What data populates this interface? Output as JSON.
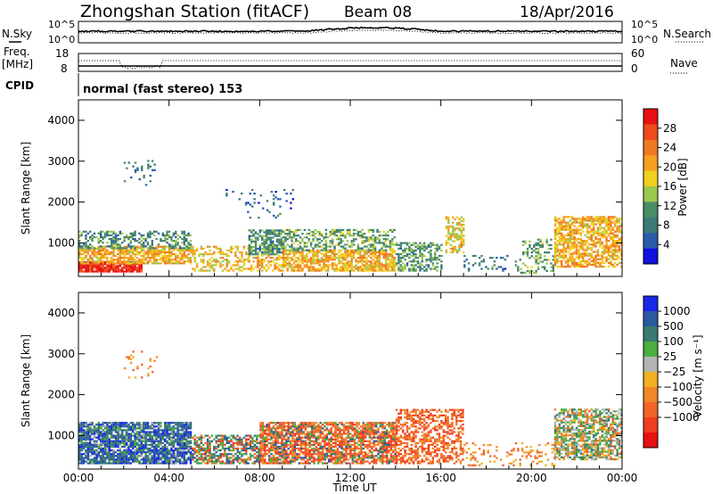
{
  "header": {
    "station": "Zhongshan Station (fitACF)",
    "beam": "Beam 08",
    "date": "18/Apr/2016"
  },
  "noise_panel": {
    "left_label": "N.Sky",
    "left_ticks": [
      "10^5",
      "10^0"
    ],
    "right_ticks": [
      "10^5",
      "10^0"
    ],
    "right_label": "N.Search"
  },
  "freq_panel": {
    "left_label_1": "Freq.",
    "left_label_2": "[MHz]",
    "left_ticks": [
      "18",
      "8"
    ],
    "right_ticks": [
      "60",
      "0"
    ],
    "right_label": "Nave"
  },
  "cpid": {
    "label": "CPID",
    "value": "normal (fast stereo) 153"
  },
  "power_panel": {
    "ylabel": "Slant Range [km]",
    "colorbar_label": "Power [dB]"
  },
  "velocity_panel": {
    "ylabel": "Slant Range [km]",
    "colorbar_label": "Velocity  [m s⁻¹]"
  },
  "x_axis": {
    "label": "Time UT",
    "ticks": [
      "00:00",
      "04:00",
      "08:00",
      "12:00",
      "16:00",
      "20:00",
      "00:00"
    ]
  },
  "chart_data": [
    {
      "type": "heatmap",
      "title": "",
      "xlabel": "Time UT",
      "ylabel": "Slant Range [km]",
      "xlim": [
        0,
        24
      ],
      "ylim": [
        180,
        4500
      ],
      "y_ticks": [
        1000,
        2000,
        3000,
        4000
      ],
      "colorbar": {
        "label": "Power [dB]",
        "range": [
          0,
          32
        ],
        "ticks": [
          4,
          8,
          12,
          16,
          20,
          24,
          28
        ],
        "colors": [
          "#1010e0",
          "#2a5caa",
          "#3c7a78",
          "#4a8c64",
          "#9cc850",
          "#f0d020",
          "#f5a020",
          "#f07820",
          "#ee4a1a",
          "#e81010"
        ]
      },
      "scatter_regions": [
        {
          "t0": 0.0,
          "t1": 2.8,
          "r0": 280,
          "r1": 520,
          "level": 30,
          "density": 0.9
        },
        {
          "t0": 0.0,
          "t1": 5.0,
          "r0": 480,
          "r1": 900,
          "level": 20,
          "density": 0.75
        },
        {
          "t0": 0.0,
          "t1": 5.0,
          "r0": 850,
          "r1": 1300,
          "level": 10,
          "density": 0.45
        },
        {
          "t0": 5.0,
          "t1": 7.5,
          "r0": 300,
          "r1": 900,
          "level": 18,
          "density": 0.45
        },
        {
          "t0": 7.5,
          "t1": 9.0,
          "r0": 700,
          "r1": 1300,
          "level": 10,
          "density": 0.7
        },
        {
          "t0": 7.5,
          "t1": 9.0,
          "r0": 300,
          "r1": 700,
          "level": 20,
          "density": 0.45
        },
        {
          "t0": 9.0,
          "t1": 14.0,
          "r0": 300,
          "r1": 800,
          "level": 20,
          "density": 0.75
        },
        {
          "t0": 9.0,
          "t1": 14.0,
          "r0": 800,
          "r1": 1300,
          "level": 12,
          "density": 0.5
        },
        {
          "t0": 14.0,
          "t1": 16.0,
          "r0": 300,
          "r1": 1000,
          "level": 11,
          "density": 0.5
        },
        {
          "t0": 16.2,
          "t1": 17.0,
          "r0": 750,
          "r1": 1650,
          "level": 18,
          "density": 0.55
        },
        {
          "t0": 17.0,
          "t1": 19.5,
          "r0": 300,
          "r1": 700,
          "level": 8,
          "density": 0.18
        },
        {
          "t0": 19.5,
          "t1": 21.0,
          "r0": 250,
          "r1": 1100,
          "level": 12,
          "density": 0.3
        },
        {
          "t0": 21.0,
          "t1": 24.0,
          "r0": 400,
          "r1": 1650,
          "level": 20,
          "density": 0.7
        },
        {
          "t0": 2.0,
          "t1": 3.5,
          "r0": 2400,
          "r1": 3050,
          "level": 8,
          "density": 0.08
        },
        {
          "t0": 6.5,
          "t1": 9.5,
          "r0": 1600,
          "r1": 2300,
          "level": 6,
          "density": 0.08
        }
      ]
    },
    {
      "type": "heatmap",
      "title": "",
      "xlabel": "Time UT",
      "ylabel": "Slant Range [km]",
      "xlim": [
        0,
        24
      ],
      "ylim": [
        180,
        4500
      ],
      "y_ticks": [
        1000,
        2000,
        3000,
        4000
      ],
      "colorbar": {
        "label": "Velocity [m s⁻¹]",
        "ticks": [
          "1000",
          "500",
          "100",
          "25",
          "−25",
          "−100",
          "−500",
          "−1000"
        ],
        "colors": [
          "#1a28e8",
          "#2a5aa0",
          "#3a7a70",
          "#4aae40",
          "#b4b4b4",
          "#f0b020",
          "#f08828",
          "#f06428",
          "#f03c20",
          "#e81010"
        ]
      },
      "scatter_regions": [
        {
          "t0": 0.0,
          "t1": 5.0,
          "r0": 300,
          "r1": 1300,
          "level": 1,
          "density": 0.8
        },
        {
          "t0": 0.0,
          "t1": 5.0,
          "r0": 300,
          "r1": 1300,
          "level": 3,
          "density": 0.25
        },
        {
          "t0": 5.0,
          "t1": 8.0,
          "r0": 300,
          "r1": 1000,
          "level": 2,
          "density": 0.55
        },
        {
          "t0": 5.0,
          "t1": 8.0,
          "r0": 300,
          "r1": 1000,
          "level": 7,
          "density": 0.2
        },
        {
          "t0": 8.0,
          "t1": 14.0,
          "r0": 300,
          "r1": 1300,
          "level": 7,
          "density": 0.7
        },
        {
          "t0": 8.0,
          "t1": 14.0,
          "r0": 300,
          "r1": 1300,
          "level": 2,
          "density": 0.2
        },
        {
          "t0": 14.0,
          "t1": 17.0,
          "r0": 300,
          "r1": 1650,
          "level": 7,
          "density": 0.55
        },
        {
          "t0": 17.0,
          "t1": 21.0,
          "r0": 250,
          "r1": 800,
          "level": 6,
          "density": 0.18
        },
        {
          "t0": 21.0,
          "t1": 24.0,
          "r0": 400,
          "r1": 1650,
          "level": 3,
          "density": 0.6
        },
        {
          "t0": 21.0,
          "t1": 24.0,
          "r0": 400,
          "r1": 1650,
          "level": 6,
          "density": 0.25
        },
        {
          "t0": 2.0,
          "t1": 3.5,
          "r0": 2400,
          "r1": 3050,
          "level": 6,
          "density": 0.08
        }
      ]
    }
  ]
}
